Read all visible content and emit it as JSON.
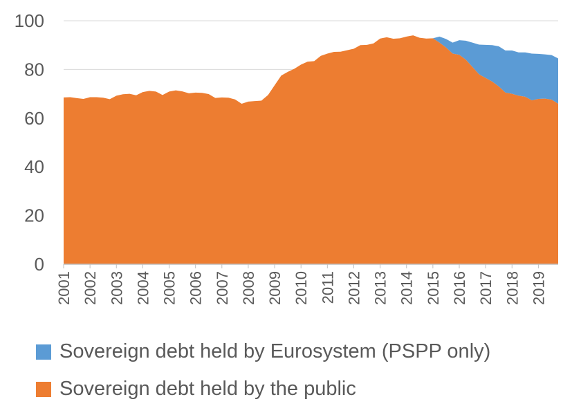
{
  "chart_data": {
    "type": "area",
    "stacked": true,
    "ylim": [
      0,
      100
    ],
    "yticks": [
      0,
      20,
      40,
      60,
      80,
      100
    ],
    "xlim": [
      2001,
      2019.75
    ],
    "xticks": [
      "2001",
      "2002",
      "2003",
      "2004",
      "2005",
      "2006",
      "2007",
      "2008",
      "2009",
      "2010",
      "2011",
      "2012",
      "2013",
      "2014",
      "2015",
      "2016",
      "2017",
      "2018",
      "2019"
    ],
    "grid": true,
    "legend_position": "bottom",
    "series": [
      {
        "name": "Sovereign debt held by the public",
        "color": "#ED7D31",
        "points": [
          [
            2001.0,
            68.5
          ],
          [
            2001.25,
            68.6
          ],
          [
            2001.5,
            68.2
          ],
          [
            2001.75,
            67.9
          ],
          [
            2002.0,
            68.6
          ],
          [
            2002.25,
            68.6
          ],
          [
            2002.5,
            68.4
          ],
          [
            2002.75,
            67.8
          ],
          [
            2003.0,
            69.2
          ],
          [
            2003.25,
            69.8
          ],
          [
            2003.5,
            70.0
          ],
          [
            2003.75,
            69.4
          ],
          [
            2004.0,
            70.7
          ],
          [
            2004.25,
            71.2
          ],
          [
            2004.5,
            70.9
          ],
          [
            2004.75,
            69.5
          ],
          [
            2005.0,
            70.9
          ],
          [
            2005.25,
            71.4
          ],
          [
            2005.5,
            71.0
          ],
          [
            2005.75,
            70.2
          ],
          [
            2006.0,
            70.5
          ],
          [
            2006.25,
            70.4
          ],
          [
            2006.5,
            69.9
          ],
          [
            2006.75,
            68.3
          ],
          [
            2007.0,
            68.5
          ],
          [
            2007.25,
            68.4
          ],
          [
            2007.5,
            67.7
          ],
          [
            2007.75,
            65.9
          ],
          [
            2008.0,
            66.8
          ],
          [
            2008.25,
            67.0
          ],
          [
            2008.5,
            67.2
          ],
          [
            2008.75,
            69.5
          ],
          [
            2009.0,
            73.5
          ],
          [
            2009.25,
            77.5
          ],
          [
            2009.5,
            79.0
          ],
          [
            2009.75,
            80.3
          ],
          [
            2010.0,
            82.0
          ],
          [
            2010.25,
            83.2
          ],
          [
            2010.5,
            83.4
          ],
          [
            2010.75,
            85.6
          ],
          [
            2011.0,
            86.5
          ],
          [
            2011.25,
            87.2
          ],
          [
            2011.5,
            87.3
          ],
          [
            2011.75,
            87.9
          ],
          [
            2012.0,
            88.5
          ],
          [
            2012.25,
            90.0
          ],
          [
            2012.5,
            90.1
          ],
          [
            2012.75,
            90.7
          ],
          [
            2013.0,
            92.7
          ],
          [
            2013.25,
            93.2
          ],
          [
            2013.5,
            92.6
          ],
          [
            2013.75,
            92.8
          ],
          [
            2014.0,
            93.5
          ],
          [
            2014.25,
            94.0
          ],
          [
            2014.5,
            93.0
          ],
          [
            2014.75,
            92.7
          ],
          [
            2015.0,
            92.8
          ],
          [
            2015.25,
            91.0
          ],
          [
            2015.5,
            89.0
          ],
          [
            2015.75,
            86.5
          ],
          [
            2016.0,
            86.0
          ],
          [
            2016.25,
            84.0
          ],
          [
            2016.5,
            81.0
          ],
          [
            2016.75,
            78.0
          ],
          [
            2017.0,
            76.5
          ],
          [
            2017.25,
            75.0
          ],
          [
            2017.5,
            73.0
          ],
          [
            2017.75,
            70.5
          ],
          [
            2018.0,
            70.0
          ],
          [
            2018.25,
            69.2
          ],
          [
            2018.5,
            68.8
          ],
          [
            2018.75,
            67.3
          ],
          [
            2019.0,
            67.9
          ],
          [
            2019.25,
            68.0
          ],
          [
            2019.5,
            67.6
          ],
          [
            2019.75,
            65.9
          ]
        ]
      },
      {
        "name": "Sovereign debt held by Eurosystem (PSPP only)",
        "color": "#5B9BD5",
        "points": [
          [
            2015.0,
            0.0
          ],
          [
            2015.25,
            2.5
          ],
          [
            2015.5,
            3.5
          ],
          [
            2015.75,
            4.5
          ],
          [
            2016.0,
            6.0
          ],
          [
            2016.25,
            7.8
          ],
          [
            2016.5,
            10.0
          ],
          [
            2016.75,
            12.2
          ],
          [
            2017.0,
            13.6
          ],
          [
            2017.25,
            15.0
          ],
          [
            2017.5,
            16.5
          ],
          [
            2017.75,
            17.3
          ],
          [
            2018.0,
            17.8
          ],
          [
            2018.25,
            17.8
          ],
          [
            2018.5,
            18.2
          ],
          [
            2018.75,
            19.2
          ],
          [
            2019.0,
            18.5
          ],
          [
            2019.25,
            18.2
          ],
          [
            2019.5,
            18.3
          ],
          [
            2019.75,
            18.6
          ]
        ]
      }
    ]
  }
}
